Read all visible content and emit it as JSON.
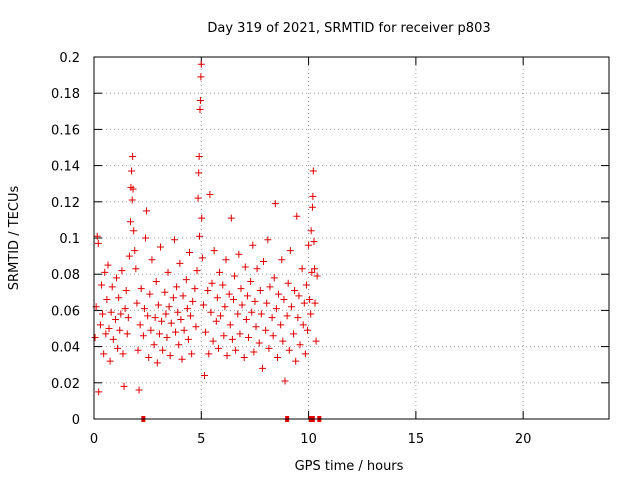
{
  "chart_data": {
    "type": "scatter",
    "title": "Day 319 of 2021, SRMTID for receiver p803",
    "xlabel": "GPS time / hours",
    "ylabel": "SRMTID / TECUs",
    "xlim": [
      0,
      24
    ],
    "ylim": [
      0,
      0.2
    ],
    "x_ticks": [
      0,
      5,
      10,
      15,
      20
    ],
    "x_tick_labels": [
      "0",
      "5",
      "10",
      "15",
      "20"
    ],
    "y_ticks": [
      0,
      0.02,
      0.04,
      0.06,
      0.08,
      0.1,
      0.12,
      0.14,
      0.16,
      0.18,
      0.2
    ],
    "y_tick_labels": [
      "0",
      "0.02",
      "0.04",
      "0.06",
      "0.08",
      "0.1",
      "0.12",
      "0.14",
      "0.16",
      "0.18",
      "0.2"
    ],
    "grid": true,
    "marker": "+",
    "series": [
      {
        "name": "SRMTID",
        "color": "#e00000",
        "points": [
          [
            0.05,
            0.045
          ],
          [
            0.1,
            0.062
          ],
          [
            0.15,
            0.101
          ],
          [
            0.2,
            0.097
          ],
          [
            0.22,
            0.015
          ],
          [
            0.3,
            0.052
          ],
          [
            0.35,
            0.074
          ],
          [
            0.4,
            0.058
          ],
          [
            0.45,
            0.036
          ],
          [
            0.5,
            0.081
          ],
          [
            0.55,
            0.047
          ],
          [
            0.6,
            0.066
          ],
          [
            0.65,
            0.085
          ],
          [
            0.7,
            0.05
          ],
          [
            0.75,
            0.032
          ],
          [
            0.8,
            0.059
          ],
          [
            0.85,
            0.073
          ],
          [
            0.9,
            0.044
          ],
          [
            1.0,
            0.055
          ],
          [
            1.05,
            0.078
          ],
          [
            1.1,
            0.039
          ],
          [
            1.15,
            0.067
          ],
          [
            1.2,
            0.049
          ],
          [
            1.25,
            0.058
          ],
          [
            1.3,
            0.082
          ],
          [
            1.35,
            0.036
          ],
          [
            1.4,
            0.018
          ],
          [
            1.45,
            0.061
          ],
          [
            1.5,
            0.071
          ],
          [
            1.55,
            0.047
          ],
          [
            1.6,
            0.056
          ],
          [
            1.65,
            0.09
          ],
          [
            1.7,
            0.109
          ],
          [
            1.72,
            0.128
          ],
          [
            1.75,
            0.137
          ],
          [
            1.78,
            0.121
          ],
          [
            1.8,
            0.145
          ],
          [
            1.82,
            0.127
          ],
          [
            1.85,
            0.104
          ],
          [
            1.9,
            0.093
          ],
          [
            1.95,
            0.083
          ],
          [
            2.0,
            0.064
          ],
          [
            2.05,
            0.038
          ],
          [
            2.1,
            0.016
          ],
          [
            2.15,
            0.052
          ],
          [
            2.2,
            0.072
          ],
          [
            2.3,
            0.046
          ],
          [
            2.35,
            0.061
          ],
          [
            2.4,
            0.1
          ],
          [
            2.45,
            0.115
          ],
          [
            2.5,
            0.057
          ],
          [
            2.55,
            0.034
          ],
          [
            2.6,
            0.069
          ],
          [
            2.65,
            0.049
          ],
          [
            2.7,
            0.088
          ],
          [
            2.8,
            0.041
          ],
          [
            2.85,
            0.056
          ],
          [
            2.9,
            0.076
          ],
          [
            2.95,
            0.031
          ],
          [
            3.0,
            0.063
          ],
          [
            3.05,
            0.047
          ],
          [
            3.1,
            0.095
          ],
          [
            3.15,
            0.054
          ],
          [
            3.2,
            0.038
          ],
          [
            3.3,
            0.07
          ],
          [
            3.35,
            0.058
          ],
          [
            3.4,
            0.045
          ],
          [
            3.45,
            0.081
          ],
          [
            3.5,
            0.062
          ],
          [
            3.55,
            0.035
          ],
          [
            3.6,
            0.053
          ],
          [
            3.7,
            0.067
          ],
          [
            3.75,
            0.099
          ],
          [
            3.8,
            0.048
          ],
          [
            3.85,
            0.073
          ],
          [
            3.9,
            0.059
          ],
          [
            3.95,
            0.041
          ],
          [
            4.0,
            0.086
          ],
          [
            4.05,
            0.055
          ],
          [
            4.1,
            0.033
          ],
          [
            4.15,
            0.068
          ],
          [
            4.2,
            0.049
          ],
          [
            4.3,
            0.077
          ],
          [
            4.35,
            0.061
          ],
          [
            4.4,
            0.044
          ],
          [
            4.45,
            0.092
          ],
          [
            4.5,
            0.057
          ],
          [
            4.55,
            0.036
          ],
          [
            4.6,
            0.065
          ],
          [
            4.7,
            0.072
          ],
          [
            4.75,
            0.051
          ],
          [
            4.8,
            0.082
          ],
          [
            4.85,
            0.122
          ],
          [
            4.88,
            0.136
          ],
          [
            4.9,
            0.145
          ],
          [
            4.92,
            0.101
          ],
          [
            4.94,
            0.171
          ],
          [
            4.96,
            0.176
          ],
          [
            4.98,
            0.189
          ],
          [
            5.0,
            0.196
          ],
          [
            5.02,
            0.111
          ],
          [
            5.05,
            0.089
          ],
          [
            5.1,
            0.063
          ],
          [
            5.15,
            0.024
          ],
          [
            5.2,
            0.048
          ],
          [
            5.3,
            0.071
          ],
          [
            5.35,
            0.036
          ],
          [
            5.4,
            0.124
          ],
          [
            5.45,
            0.059
          ],
          [
            5.5,
            0.075
          ],
          [
            5.55,
            0.043
          ],
          [
            5.6,
            0.093
          ],
          [
            5.7,
            0.054
          ],
          [
            5.75,
            0.067
          ],
          [
            5.8,
            0.039
          ],
          [
            5.85,
            0.081
          ],
          [
            5.9,
            0.057
          ],
          [
            6.0,
            0.074
          ],
          [
            6.05,
            0.046
          ],
          [
            6.1,
            0.062
          ],
          [
            6.15,
            0.088
          ],
          [
            6.2,
            0.035
          ],
          [
            6.3,
            0.069
          ],
          [
            6.35,
            0.052
          ],
          [
            6.4,
            0.111
          ],
          [
            6.45,
            0.044
          ],
          [
            6.5,
            0.066
          ],
          [
            6.55,
            0.079
          ],
          [
            6.6,
            0.038
          ],
          [
            6.7,
            0.058
          ],
          [
            6.75,
            0.091
          ],
          [
            6.8,
            0.047
          ],
          [
            6.85,
            0.072
          ],
          [
            6.9,
            0.063
          ],
          [
            7.0,
            0.034
          ],
          [
            7.05,
            0.084
          ],
          [
            7.1,
            0.055
          ],
          [
            7.15,
            0.068
          ],
          [
            7.2,
            0.045
          ],
          [
            7.3,
            0.076
          ],
          [
            7.35,
            0.059
          ],
          [
            7.4,
            0.096
          ],
          [
            7.45,
            0.037
          ],
          [
            7.5,
            0.065
          ],
          [
            7.55,
            0.051
          ],
          [
            7.6,
            0.083
          ],
          [
            7.7,
            0.042
          ],
          [
            7.75,
            0.071
          ],
          [
            7.8,
            0.058
          ],
          [
            7.85,
            0.028
          ],
          [
            7.9,
            0.087
          ],
          [
            8.0,
            0.049
          ],
          [
            8.05,
            0.064
          ],
          [
            8.1,
            0.099
          ],
          [
            8.15,
            0.039
          ],
          [
            8.2,
            0.073
          ],
          [
            8.3,
            0.056
          ],
          [
            8.35,
            0.046
          ],
          [
            8.4,
            0.078
          ],
          [
            8.45,
            0.119
          ],
          [
            8.5,
            0.061
          ],
          [
            8.55,
            0.034
          ],
          [
            8.6,
            0.069
          ],
          [
            8.7,
            0.052
          ],
          [
            8.75,
            0.088
          ],
          [
            8.8,
            0.043
          ],
          [
            8.85,
            0.066
          ],
          [
            8.9,
            0.021
          ],
          [
            9.0,
            0.057
          ],
          [
            9.05,
            0.075
          ],
          [
            9.1,
            0.038
          ],
          [
            9.15,
            0.093
          ],
          [
            9.2,
            0.062
          ],
          [
            9.3,
            0.047
          ],
          [
            9.35,
            0.071
          ],
          [
            9.4,
            0.032
          ],
          [
            9.45,
            0.112
          ],
          [
            9.5,
            0.056
          ],
          [
            9.55,
            0.068
          ],
          [
            9.6,
            0.041
          ],
          [
            9.7,
            0.083
          ],
          [
            9.75,
            0.052
          ],
          [
            9.8,
            0.064
          ],
          [
            9.85,
            0.036
          ],
          [
            9.9,
            0.074
          ],
          [
            9.95,
            0.049
          ],
          [
            10.0,
            0.096
          ],
          [
            10.05,
            0.066
          ],
          [
            10.1,
            0.058
          ],
          [
            10.12,
            0.104
          ],
          [
            10.15,
            0.081
          ],
          [
            10.18,
            0.117
          ],
          [
            10.2,
            0.123
          ],
          [
            10.22,
            0.137
          ],
          [
            10.25,
            0.098
          ],
          [
            10.28,
            0.083
          ],
          [
            10.3,
            0.064
          ],
          [
            10.35,
            0.043
          ],
          [
            10.4,
            0.079
          ]
        ]
      }
    ],
    "zero_markers_x": [
      2.3,
      9.0,
      10.1,
      10.2,
      10.5
    ]
  }
}
